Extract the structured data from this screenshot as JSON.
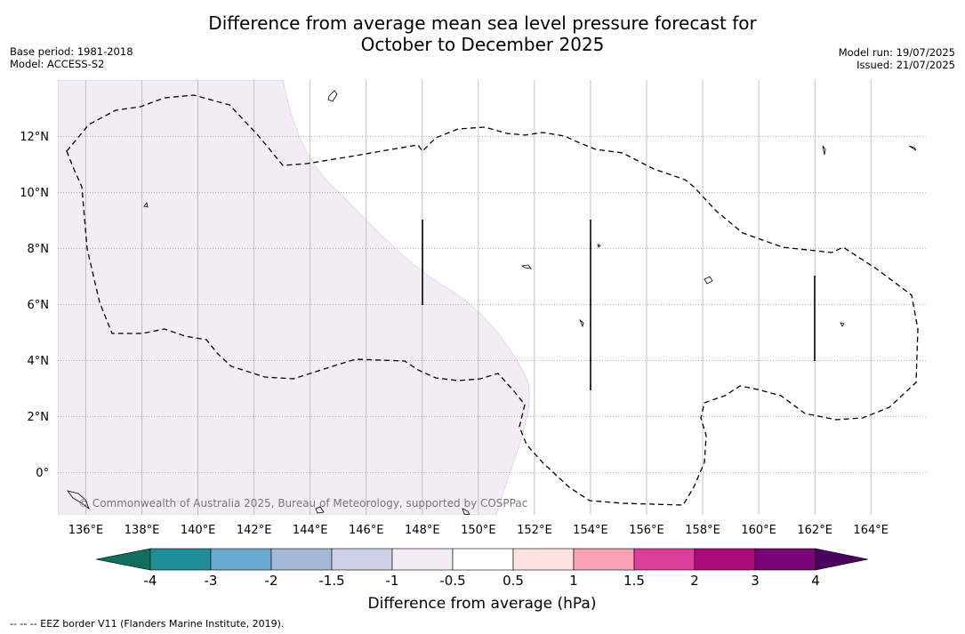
{
  "title_line1": "Difference from average mean sea level pressure forecast for",
  "title_line2": "October to December 2025",
  "meta_left": {
    "base_period": "Base period: 1981-2018",
    "model": "Model: ACCESS-S2"
  },
  "meta_right": {
    "model_run": "Model run: 19/07/2025",
    "issued": "Issued: 21/07/2025"
  },
  "map": {
    "lon_labels": [
      "136°E",
      "138°E",
      "140°E",
      "142°E",
      "144°E",
      "146°E",
      "148°E",
      "150°E",
      "152°E",
      "154°E",
      "156°E",
      "158°E",
      "160°E",
      "162°E",
      "164°E"
    ],
    "lat_labels": [
      "12°N",
      "10°N",
      "8°N",
      "6°N",
      "4°N",
      "2°N",
      "0°"
    ],
    "copyright": "© Commonwealth of Australia 2025, Bureau of Meteorology, supported by COSPPac",
    "shading": {
      "category": "-1 to -0.5",
      "color": "#f3ebf5"
    },
    "eez_style": "dashed"
  },
  "legend": {
    "ticks": [
      "-4",
      "-3",
      "-2",
      "-1.5",
      "-1",
      "-0.5",
      "0.5",
      "1",
      "1.5",
      "2",
      "3",
      "4"
    ],
    "colors": [
      "#1e8f96",
      "#6aaad2",
      "#a5b8da",
      "#cdd0e6",
      "#f3ebf5",
      "#ffffff",
      "#fde0df",
      "#f9a1b5",
      "#dc3e9c",
      "#ab0a7c",
      "#7a0477"
    ],
    "under_color": "#0f6f5e",
    "over_color": "#4b025f",
    "label": "Difference from average (hPa)"
  },
  "footnote": "--  --  -- EEZ border V11 (Flanders Marine Institute, 2019)."
}
